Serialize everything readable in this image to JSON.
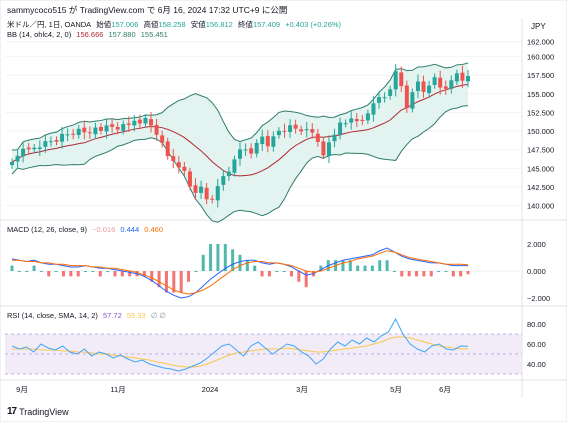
{
  "header": {
    "author_line": "sammycoco515 が TradingView.com で 6月 16, 2024 17:32 UTC+9 に公開"
  },
  "symbol_legend": {
    "name": "米ドル／円, 1日, OANDA",
    "open_label": "始値",
    "open": "157.006",
    "high_label": "高値",
    "high": "158.258",
    "low_label": "安値",
    "low": "156.812",
    "close_label": "終値",
    "close": "157.409",
    "change": "+0.403 (+0.26%)"
  },
  "bb_legend": {
    "name": "BB (14, ohlc4, 2, 0)",
    "basis": "156.666",
    "upper": "157.880",
    "lower": "155.451"
  },
  "macd_legend": {
    "name": "MACD (12, 26, close, 9)",
    "hist": "−0.016",
    "macd": "0.444",
    "signal": "0.460"
  },
  "rsi_legend": {
    "name": "RSI (14, close, SMA, 14, 2)",
    "rsi": "57.72",
    "ma": "55.33",
    "extra": "∅ ∅"
  },
  "currency": "JPY",
  "price_axis": [
    "162.000",
    "160.000",
    "157.500",
    "155.000",
    "152.500",
    "150.000",
    "147.500",
    "145.000",
    "142.500",
    "140.000"
  ],
  "macd_axis": [
    "2.000",
    "0.000",
    "−2.000"
  ],
  "rsi_axis": [
    "80.00",
    "60.00",
    "40.00"
  ],
  "time_axis": [
    "9月",
    "11月",
    "2024",
    "3月",
    "5月",
    "6月"
  ],
  "footer": {
    "brand": "TradingView"
  },
  "colors": {
    "up": "#26a69a",
    "down": "#ef5350",
    "bb_band": "#2e7d6a",
    "bb_basis": "#b22833",
    "macd": "#2962ff",
    "signal": "#ff6d00",
    "rsi": "#7e57c2",
    "rsi_fill": "#ede7f6"
  },
  "chart_data": {
    "type": "candlestick",
    "ylim": [
      139,
      162.5
    ],
    "x": [
      "9月",
      "11月",
      "2024",
      "3月",
      "5月",
      "6月"
    ],
    "price_path": [
      146.2,
      146.8,
      147.5,
      147.2,
      148.0,
      147.8,
      148.4,
      149.0,
      148.7,
      149.5,
      149.2,
      149.8,
      150.3,
      149.6,
      150.1,
      150.6,
      149.9,
      150.4,
      150.8,
      150.2,
      150.7,
      151.2,
      151.5,
      150.9,
      151.4,
      151.0,
      149.5,
      148.2,
      147.0,
      146.1,
      145.0,
      144.3,
      142.8,
      141.7,
      142.3,
      141.2,
      140.9,
      142.5,
      143.6,
      144.8,
      146.2,
      147.3,
      147.9,
      147.1,
      148.3,
      148.9,
      148.2,
      149.3,
      149.8,
      150.4,
      150.9,
      150.2,
      149.6,
      150.5,
      149.8,
      148.3,
      147.1,
      148.6,
      149.4,
      150.8,
      151.3,
      151.7,
      151.1,
      151.8,
      152.5,
      153.6,
      154.2,
      154.8,
      155.6,
      157.8,
      156.4,
      153.2,
      155.1,
      156.3,
      155.5,
      156.1,
      157.0,
      156.2,
      155.8,
      156.7,
      157.4,
      157.0,
      157.4
    ],
    "macd_path": [
      0.9,
      0.8,
      0.7,
      0.8,
      0.6,
      0.5,
      0.5,
      0.4,
      0.3,
      0.3,
      0.4,
      0.3,
      0.2,
      0.2,
      0.1,
      0.0,
      -0.1,
      -0.2,
      -0.4,
      -0.7,
      -1.1,
      -1.5,
      -1.8,
      -2.0,
      -1.9,
      -1.6,
      -1.1,
      -0.6,
      -0.2,
      0.2,
      0.5,
      0.7,
      0.8,
      0.8,
      0.6,
      0.5,
      0.6,
      0.5,
      0.3,
      0.0,
      -0.3,
      -0.2,
      0.1,
      0.4,
      0.6,
      0.8,
      0.9,
      1.0,
      1.1,
      1.2,
      1.5,
      1.7,
      1.4,
      1.1,
      0.9,
      0.8,
      0.7,
      0.6,
      0.6,
      0.5,
      0.4,
      0.4,
      0.4
    ],
    "signal_path": [
      0.8,
      0.8,
      0.7,
      0.7,
      0.6,
      0.6,
      0.5,
      0.5,
      0.4,
      0.4,
      0.4,
      0.3,
      0.3,
      0.2,
      0.2,
      0.1,
      0.0,
      -0.1,
      -0.3,
      -0.5,
      -0.8,
      -1.1,
      -1.4,
      -1.6,
      -1.7,
      -1.6,
      -1.4,
      -1.1,
      -0.7,
      -0.3,
      0.1,
      0.4,
      0.6,
      0.7,
      0.7,
      0.6,
      0.6,
      0.5,
      0.4,
      0.2,
      0.0,
      -0.1,
      0.0,
      0.2,
      0.4,
      0.6,
      0.7,
      0.9,
      1.0,
      1.1,
      1.3,
      1.5,
      1.4,
      1.2,
      1.0,
      0.9,
      0.8,
      0.7,
      0.6,
      0.5,
      0.5,
      0.5,
      0.46
    ],
    "rsi_path": [
      58,
      55,
      57,
      52,
      60,
      56,
      54,
      58,
      52,
      50,
      55,
      48,
      52,
      50,
      46,
      49,
      45,
      42,
      44,
      40,
      38,
      36,
      35,
      33,
      35,
      38,
      41,
      46,
      52,
      58,
      60,
      54,
      48,
      58,
      62,
      56,
      50,
      55,
      60,
      58,
      52,
      48,
      40,
      45,
      55,
      62,
      58,
      64,
      60,
      66,
      62,
      68,
      72,
      85,
      70,
      60,
      55,
      52,
      58,
      60,
      55,
      54,
      58,
      57.7
    ],
    "rsi_ma_path": [
      55,
      55,
      55,
      55,
      54,
      54,
      54,
      53,
      53,
      52,
      52,
      51,
      50,
      50,
      49,
      48,
      47,
      46,
      45,
      44,
      42,
      41,
      39,
      38,
      37,
      37,
      38,
      40,
      43,
      46,
      49,
      51,
      52,
      53,
      54,
      55,
      55,
      55,
      56,
      55,
      54,
      53,
      52,
      52,
      53,
      54,
      55,
      56,
      57,
      58,
      60,
      62,
      65,
      67,
      67,
      66,
      64,
      62,
      60,
      58,
      57,
      56,
      55,
      55.3
    ]
  }
}
